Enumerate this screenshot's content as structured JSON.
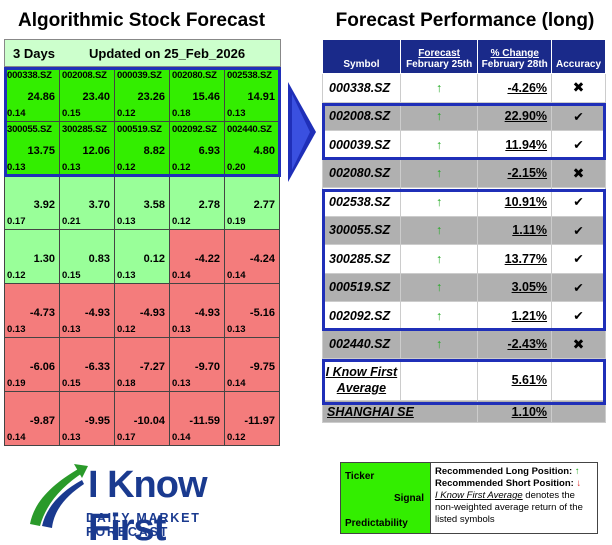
{
  "left_title": "Algorithmic Stock Forecast",
  "right_title": "Forecast Performance (long)",
  "horizon": "3 Days",
  "updated": "Updated on 25_Feb_2026",
  "grid": [
    [
      {
        "t": "000338.SZ",
        "s": "24.86",
        "p": "0.14",
        "c": "g"
      },
      {
        "t": "002008.SZ",
        "s": "23.40",
        "p": "0.15",
        "c": "g"
      },
      {
        "t": "000039.SZ",
        "s": "23.26",
        "p": "0.12",
        "c": "g"
      },
      {
        "t": "002080.SZ",
        "s": "15.46",
        "p": "0.18",
        "c": "g"
      },
      {
        "t": "002538.SZ",
        "s": "14.91",
        "p": "0.13",
        "c": "g"
      }
    ],
    [
      {
        "t": "300055.SZ",
        "s": "13.75",
        "p": "0.13",
        "c": "g"
      },
      {
        "t": "300285.SZ",
        "s": "12.06",
        "p": "0.13",
        "c": "g"
      },
      {
        "t": "000519.SZ",
        "s": "8.82",
        "p": "0.12",
        "c": "g"
      },
      {
        "t": "002092.SZ",
        "s": "6.93",
        "p": "0.12",
        "c": "g"
      },
      {
        "t": "002440.SZ",
        "s": "4.80",
        "p": "0.20",
        "c": "g"
      }
    ],
    [
      {
        "t": "",
        "s": "3.92",
        "p": "0.17",
        "c": "lg"
      },
      {
        "t": "",
        "s": "3.70",
        "p": "0.21",
        "c": "lg"
      },
      {
        "t": "",
        "s": "3.58",
        "p": "0.13",
        "c": "lg"
      },
      {
        "t": "",
        "s": "2.78",
        "p": "0.12",
        "c": "lg"
      },
      {
        "t": "",
        "s": "2.77",
        "p": "0.19",
        "c": "lg"
      }
    ],
    [
      {
        "t": "",
        "s": "1.30",
        "p": "0.12",
        "c": "lg"
      },
      {
        "t": "",
        "s": "0.83",
        "p": "0.15",
        "c": "lg"
      },
      {
        "t": "",
        "s": "0.12",
        "p": "0.13",
        "c": "lg"
      },
      {
        "t": "",
        "s": "-4.22",
        "p": "0.14",
        "c": "r"
      },
      {
        "t": "",
        "s": "-4.24",
        "p": "0.14",
        "c": "r"
      }
    ],
    [
      {
        "t": "",
        "s": "-4.73",
        "p": "0.13",
        "c": "r"
      },
      {
        "t": "",
        "s": "-4.93",
        "p": "0.13",
        "c": "r"
      },
      {
        "t": "",
        "s": "-4.93",
        "p": "0.12",
        "c": "r"
      },
      {
        "t": "",
        "s": "-4.93",
        "p": "0.13",
        "c": "r"
      },
      {
        "t": "",
        "s": "-5.16",
        "p": "0.13",
        "c": "r"
      }
    ],
    [
      {
        "t": "",
        "s": "-6.06",
        "p": "0.19",
        "c": "r"
      },
      {
        "t": "",
        "s": "-6.33",
        "p": "0.15",
        "c": "r"
      },
      {
        "t": "",
        "s": "-7.27",
        "p": "0.18",
        "c": "r"
      },
      {
        "t": "",
        "s": "-9.70",
        "p": "0.13",
        "c": "r"
      },
      {
        "t": "",
        "s": "-9.75",
        "p": "0.14",
        "c": "r"
      }
    ],
    [
      {
        "t": "",
        "s": "-9.87",
        "p": "0.14",
        "c": "r"
      },
      {
        "t": "",
        "s": "-9.95",
        "p": "0.13",
        "c": "r"
      },
      {
        "t": "",
        "s": "-10.04",
        "p": "0.17",
        "c": "r"
      },
      {
        "t": "",
        "s": "-11.59",
        "p": "0.14",
        "c": "r"
      },
      {
        "t": "",
        "s": "-11.97",
        "p": "0.12",
        "c": "r"
      }
    ]
  ],
  "table": {
    "headers": {
      "symbol": "Symbol",
      "forecast": "Forecast",
      "forecast_date": "February 25th",
      "change": "% Change",
      "change_date": "February 28th",
      "accuracy": "Accuracy"
    },
    "rows": [
      {
        "symbol": "000338.SZ",
        "arrow": "↑",
        "change": "-4.26%",
        "acc": "✖",
        "shade": "white"
      },
      {
        "symbol": "002008.SZ",
        "arrow": "↑",
        "change": "22.90%",
        "acc": "✔",
        "shade": "alt"
      },
      {
        "symbol": "000039.SZ",
        "arrow": "↑",
        "change": "11.94%",
        "acc": "✔",
        "shade": "white"
      },
      {
        "symbol": "002080.SZ",
        "arrow": "↑",
        "change": "-2.15%",
        "acc": "✖",
        "shade": "alt"
      },
      {
        "symbol": "002538.SZ",
        "arrow": "↑",
        "change": "10.91%",
        "acc": "✔",
        "shade": "white"
      },
      {
        "symbol": "300055.SZ",
        "arrow": "↑",
        "change": "1.11%",
        "acc": "✔",
        "shade": "alt"
      },
      {
        "symbol": "300285.SZ",
        "arrow": "↑",
        "change": "13.77%",
        "acc": "✔",
        "shade": "white"
      },
      {
        "symbol": "000519.SZ",
        "arrow": "↑",
        "change": "3.05%",
        "acc": "✔",
        "shade": "alt"
      },
      {
        "symbol": "002092.SZ",
        "arrow": "↑",
        "change": "1.21%",
        "acc": "✔",
        "shade": "white"
      },
      {
        "symbol": "002440.SZ",
        "arrow": "↑",
        "change": "-2.43%",
        "acc": "✖",
        "shade": "alt"
      }
    ],
    "average": {
      "label_line1": "I Know First",
      "label_line2": "Average",
      "value": "5.61%"
    },
    "benchmark": {
      "label": "SHANGHAI SE",
      "value": "1.10%"
    }
  },
  "logo": {
    "name": "I Know First",
    "tagline": "DAILY MARKET FORECAST"
  },
  "legend": {
    "ticker": "Ticker",
    "signal": "Signal",
    "predictability": "Predictability",
    "long": "Recommended Long Position:",
    "long_arrow": "↑",
    "short": "Recommended Short Position:",
    "short_arrow": "↓",
    "avg_name": "I Know First Average",
    "avg_desc": " denotes the non-weighted average return of the listed symbols"
  },
  "colors": {
    "strong_green": "#33ee00",
    "light_green": "#99ff99",
    "red": "#f47c7c",
    "navy": "#1a2a8a",
    "box_blue": "#1f2fb8"
  }
}
